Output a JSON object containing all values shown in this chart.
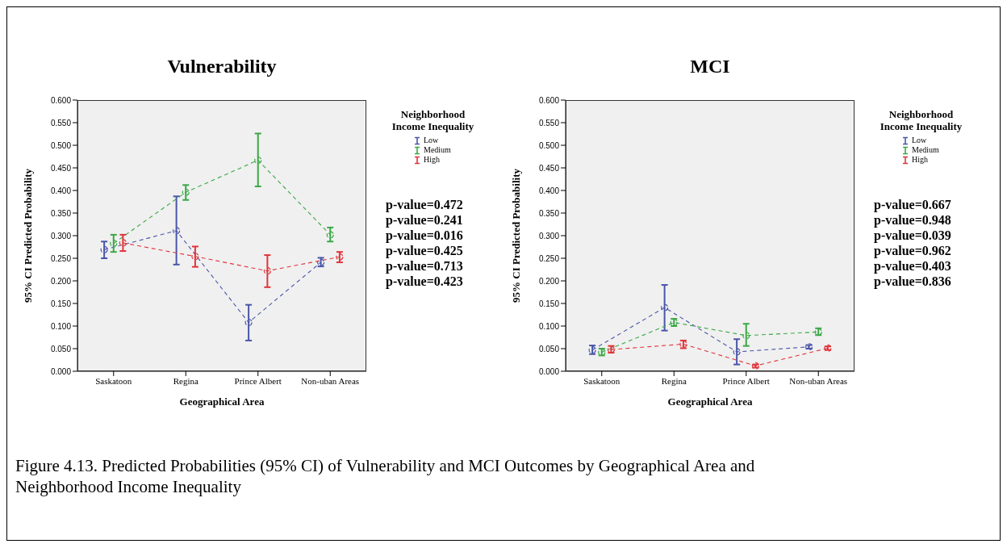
{
  "chart_data": [
    {
      "type": "line",
      "title": "Vulnerability",
      "xlabel": "Geographical Area",
      "ylabel": "95% CI Predicted Probability",
      "legend_title": "Neighborhood Income Inequality",
      "legend": "right",
      "marker": "circle",
      "line_style": "dashed",
      "grid": false,
      "categories": [
        "Saskatoon",
        "Regina",
        "Prince Albert",
        "Non-uban Areas"
      ],
      "ylim": [
        0,
        0.6
      ],
      "yticks": [
        {
          "value": 0,
          "label": "0.000"
        },
        {
          "value": 0.05,
          "label": "0.050"
        },
        {
          "value": 0.1,
          "label": "0.100"
        },
        {
          "value": 0.15,
          "label": "0.150"
        },
        {
          "value": 0.2,
          "label": "0.200"
        },
        {
          "value": 0.25,
          "label": "0.250"
        },
        {
          "value": 0.3,
          "label": "0.300"
        },
        {
          "value": 0.35,
          "label": "0.350"
        },
        {
          "value": 0.4,
          "label": "0.400"
        },
        {
          "value": 0.45,
          "label": "0.450"
        },
        {
          "value": 0.5,
          "label": "0.500"
        },
        {
          "value": 0.55,
          "label": "0.550"
        },
        {
          "value": 0.6,
          "label": "0.600"
        }
      ],
      "series": [
        {
          "name": "Low",
          "color": "#4a56a8",
          "values": [
            0.269,
            0.311,
            0.108,
            0.241
          ],
          "errors": [
            [
              0.25,
              0.287
            ],
            [
              0.236,
              0.387
            ],
            [
              0.068,
              0.147
            ],
            [
              0.232,
              0.251
            ]
          ]
        },
        {
          "name": "Medium",
          "color": "#3aa845",
          "values": [
            0.283,
            0.396,
            0.467,
            0.302
          ],
          "errors": [
            [
              0.264,
              0.302
            ],
            [
              0.379,
              0.412
            ],
            [
              0.409,
              0.526
            ],
            [
              0.287,
              0.318
            ]
          ]
        },
        {
          "name": "High",
          "color": "#e0343a",
          "values": [
            0.284,
            0.254,
            0.222,
            0.253
          ],
          "errors": [
            [
              0.266,
              0.302
            ],
            [
              0.231,
              0.276
            ],
            [
              0.186,
              0.257
            ],
            [
              0.241,
              0.264
            ]
          ]
        }
      ],
      "annotations": [
        "p-value=0.472",
        "p-value=0.241",
        "p-value=0.016",
        "p-value=0.425",
        "p-value=0.713",
        "p-value=0.423"
      ]
    },
    {
      "type": "line",
      "title": "MCI",
      "xlabel": "Geographical Area",
      "ylabel": "95% CI Predicted Probability",
      "legend_title": "Neighborhood Income Inequality",
      "legend": "right",
      "marker": "circle",
      "line_style": "dashed",
      "grid": false,
      "categories": [
        "Saskatoon",
        "Regina",
        "Prince Albert",
        "Non-uban Areas"
      ],
      "ylim": [
        0,
        0.6
      ],
      "yticks": [
        {
          "value": 0,
          "label": "0.000"
        },
        {
          "value": 0.05,
          "label": "0.050"
        },
        {
          "value": 0.1,
          "label": "0.100"
        },
        {
          "value": 0.15,
          "label": "0.150"
        },
        {
          "value": 0.2,
          "label": "0.200"
        },
        {
          "value": 0.25,
          "label": "0.250"
        },
        {
          "value": 0.3,
          "label": "0.300"
        },
        {
          "value": 0.35,
          "label": "0.350"
        },
        {
          "value": 0.4,
          "label": "0.400"
        },
        {
          "value": 0.45,
          "label": "0.450"
        },
        {
          "value": 0.5,
          "label": "0.500"
        },
        {
          "value": 0.55,
          "label": "0.550"
        },
        {
          "value": 0.6,
          "label": "0.600"
        }
      ],
      "series": [
        {
          "name": "Low",
          "color": "#4a56a8",
          "values": [
            0.047,
            0.141,
            0.043,
            0.054
          ],
          "errors": [
            [
              0.038,
              0.057
            ],
            [
              0.09,
              0.191
            ],
            [
              0.015,
              0.071
            ],
            [
              0.05,
              0.058
            ]
          ]
        },
        {
          "name": "Medium",
          "color": "#3aa845",
          "values": [
            0.042,
            0.108,
            0.079,
            0.087
          ],
          "errors": [
            [
              0.035,
              0.05
            ],
            [
              0.1,
              0.116
            ],
            [
              0.056,
              0.105
            ],
            [
              0.08,
              0.095
            ]
          ]
        },
        {
          "name": "High",
          "color": "#e0343a",
          "values": [
            0.048,
            0.06,
            0.012,
            0.051
          ],
          "errors": [
            [
              0.041,
              0.056
            ],
            [
              0.051,
              0.068
            ],
            [
              0.008,
              0.015
            ],
            [
              0.047,
              0.055
            ]
          ]
        }
      ],
      "annotations": [
        "p-value=0.667",
        "p-value=0.948",
        "p-value=0.039",
        "p-value=0.962",
        "p-value=0.403",
        "p-value=0.836",
        "Figure 4.13. Predicted Probabilities (95% CI) of Vulnerability and MCI Outcomes by Geographical Area and Neighborhood Income Inequality"
      ]
    }
  ]
}
